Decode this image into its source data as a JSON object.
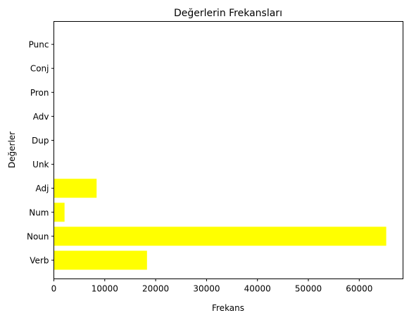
{
  "chart_data": {
    "type": "bar",
    "orientation": "horizontal",
    "title": "Değerlerin Frekansları",
    "xlabel": "Frekans",
    "ylabel": "Değerler",
    "categories": [
      "Verb",
      "Noun",
      "Num",
      "Adj",
      "Unk",
      "Dup",
      "Adv",
      "Pron",
      "Conj",
      "Punc"
    ],
    "values": [
      18300,
      65300,
      2100,
      8400,
      0,
      0,
      0,
      0,
      0,
      0
    ],
    "xlim": [
      0,
      68600
    ],
    "xticks": [
      0,
      10000,
      20000,
      30000,
      40000,
      50000,
      60000
    ],
    "bar_color": "#ffff00",
    "grid": false,
    "legend": "none"
  }
}
